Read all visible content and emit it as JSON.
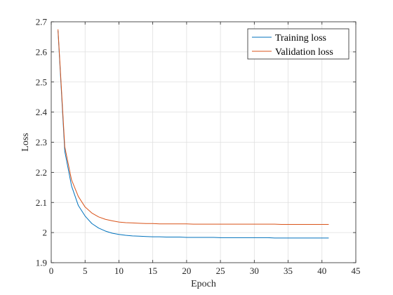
{
  "chart_data": {
    "type": "line",
    "title": "",
    "xlabel": "Epoch",
    "ylabel": "Loss",
    "xlim": [
      0,
      45
    ],
    "ylim": [
      1.9,
      2.7
    ],
    "xticks": [
      0,
      5,
      10,
      15,
      20,
      25,
      30,
      35,
      40,
      45
    ],
    "yticks": [
      1.9,
      2,
      2.1,
      2.2,
      2.3,
      2.4,
      2.5,
      2.6,
      2.7
    ],
    "ytick_labels": [
      "1.9",
      "2",
      "2.1",
      "2.2",
      "2.3",
      "2.4",
      "2.5",
      "2.6",
      "2.7"
    ],
    "grid": true,
    "legend_position": "top-right",
    "series": [
      {
        "name": "Training loss",
        "color": "#0072BD",
        "x": [
          1,
          2,
          3,
          4,
          5,
          6,
          7,
          8,
          9,
          10,
          11,
          12,
          13,
          14,
          15,
          16,
          17,
          18,
          19,
          20,
          21,
          22,
          23,
          24,
          25,
          26,
          27,
          28,
          29,
          30,
          31,
          32,
          33,
          34,
          35,
          36,
          37,
          38,
          39,
          40,
          41
        ],
        "y": [
          2.67,
          2.27,
          2.155,
          2.09,
          2.055,
          2.03,
          2.015,
          2.005,
          1.998,
          1.994,
          1.991,
          1.989,
          1.988,
          1.987,
          1.986,
          1.986,
          1.985,
          1.985,
          1.985,
          1.984,
          1.984,
          1.984,
          1.984,
          1.984,
          1.983,
          1.983,
          1.983,
          1.983,
          1.983,
          1.983,
          1.983,
          1.983,
          1.982,
          1.982,
          1.982,
          1.982,
          1.982,
          1.982,
          1.982,
          1.982,
          1.982
        ]
      },
      {
        "name": "Validation loss",
        "color": "#D95319",
        "x": [
          1,
          2,
          3,
          4,
          5,
          6,
          7,
          8,
          9,
          10,
          11,
          12,
          13,
          14,
          15,
          16,
          17,
          18,
          19,
          20,
          21,
          22,
          23,
          24,
          25,
          26,
          27,
          28,
          29,
          30,
          31,
          32,
          33,
          34,
          35,
          36,
          37,
          38,
          39,
          40,
          41
        ],
        "y": [
          2.675,
          2.285,
          2.175,
          2.12,
          2.085,
          2.065,
          2.052,
          2.044,
          2.039,
          2.035,
          2.033,
          2.032,
          2.031,
          2.03,
          2.03,
          2.029,
          2.029,
          2.029,
          2.029,
          2.029,
          2.028,
          2.028,
          2.028,
          2.028,
          2.028,
          2.028,
          2.028,
          2.028,
          2.028,
          2.028,
          2.028,
          2.028,
          2.028,
          2.027,
          2.027,
          2.027,
          2.027,
          2.027,
          2.027,
          2.027,
          2.027
        ]
      }
    ]
  }
}
